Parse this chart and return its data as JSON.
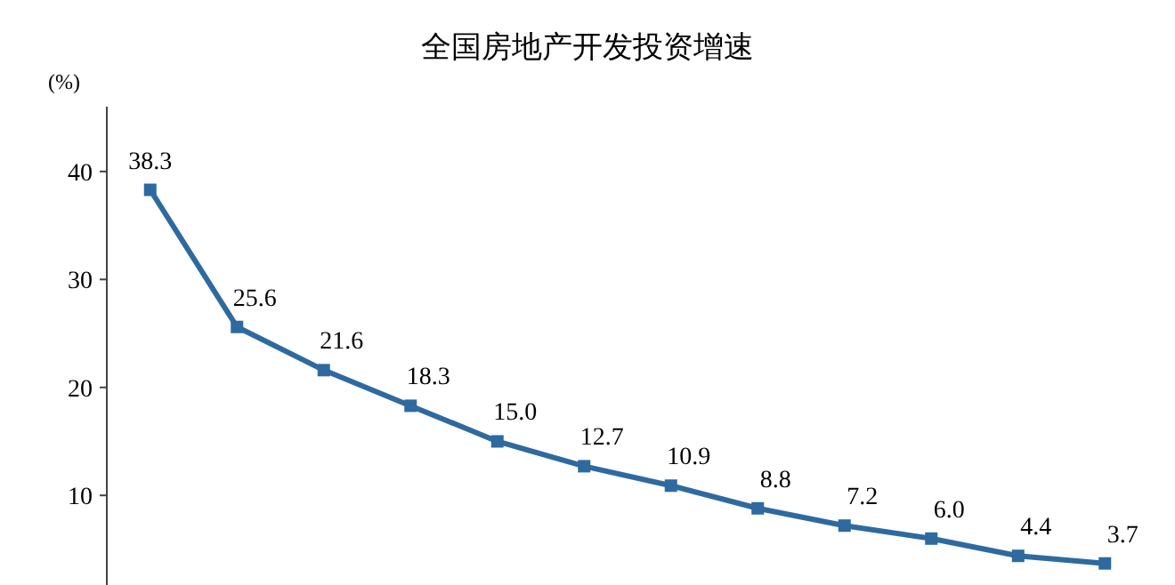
{
  "chart_data": {
    "type": "line",
    "title": "全国房地产开发投资增速",
    "ylabel": "(%)",
    "categories": [
      null,
      null,
      null,
      null,
      null,
      null,
      null,
      null,
      null,
      null,
      null,
      null
    ],
    "series": [
      {
        "color": "#2e6aa0",
        "values": [
          38.3,
          25.6,
          21.6,
          18.3,
          15.0,
          12.7,
          10.9,
          8.8,
          7.2,
          6.0,
          4.4,
          3.7
        ],
        "value_labels": [
          "38.3",
          "25.6",
          "21.6",
          "18.3",
          "15.0",
          "12.7",
          "10.9",
          "8.8",
          "7.2",
          "6.0",
          "4.4",
          "3.7"
        ]
      }
    ],
    "ylim": [
      1.7,
      46
    ],
    "yticks": [
      10,
      20,
      30,
      40
    ],
    "marker": "square",
    "line_style": "solid",
    "tick_labels": "y"
  }
}
